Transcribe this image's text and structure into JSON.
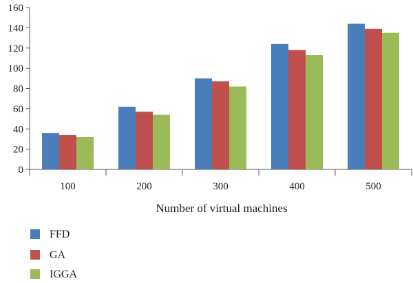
{
  "chart_data": {
    "type": "bar",
    "title": "",
    "xlabel": "Number of virtual machines",
    "ylabel": "",
    "categories": [
      "100",
      "200",
      "300",
      "400",
      "500"
    ],
    "series": [
      {
        "name": "FFD",
        "color": "#4a7ebb",
        "values": [
          36,
          62,
          90,
          124,
          144
        ]
      },
      {
        "name": "GA",
        "color": "#c0504d",
        "values": [
          34,
          57,
          87,
          118,
          139
        ]
      },
      {
        "name": "IGGA",
        "color": "#9bbb59",
        "values": [
          32,
          54,
          82,
          113,
          135
        ]
      }
    ],
    "ylim": [
      0,
      160
    ],
    "yticks": [
      0,
      20,
      40,
      60,
      80,
      100,
      120,
      140,
      160
    ],
    "grid": false,
    "legend_position": "bottom-left"
  }
}
